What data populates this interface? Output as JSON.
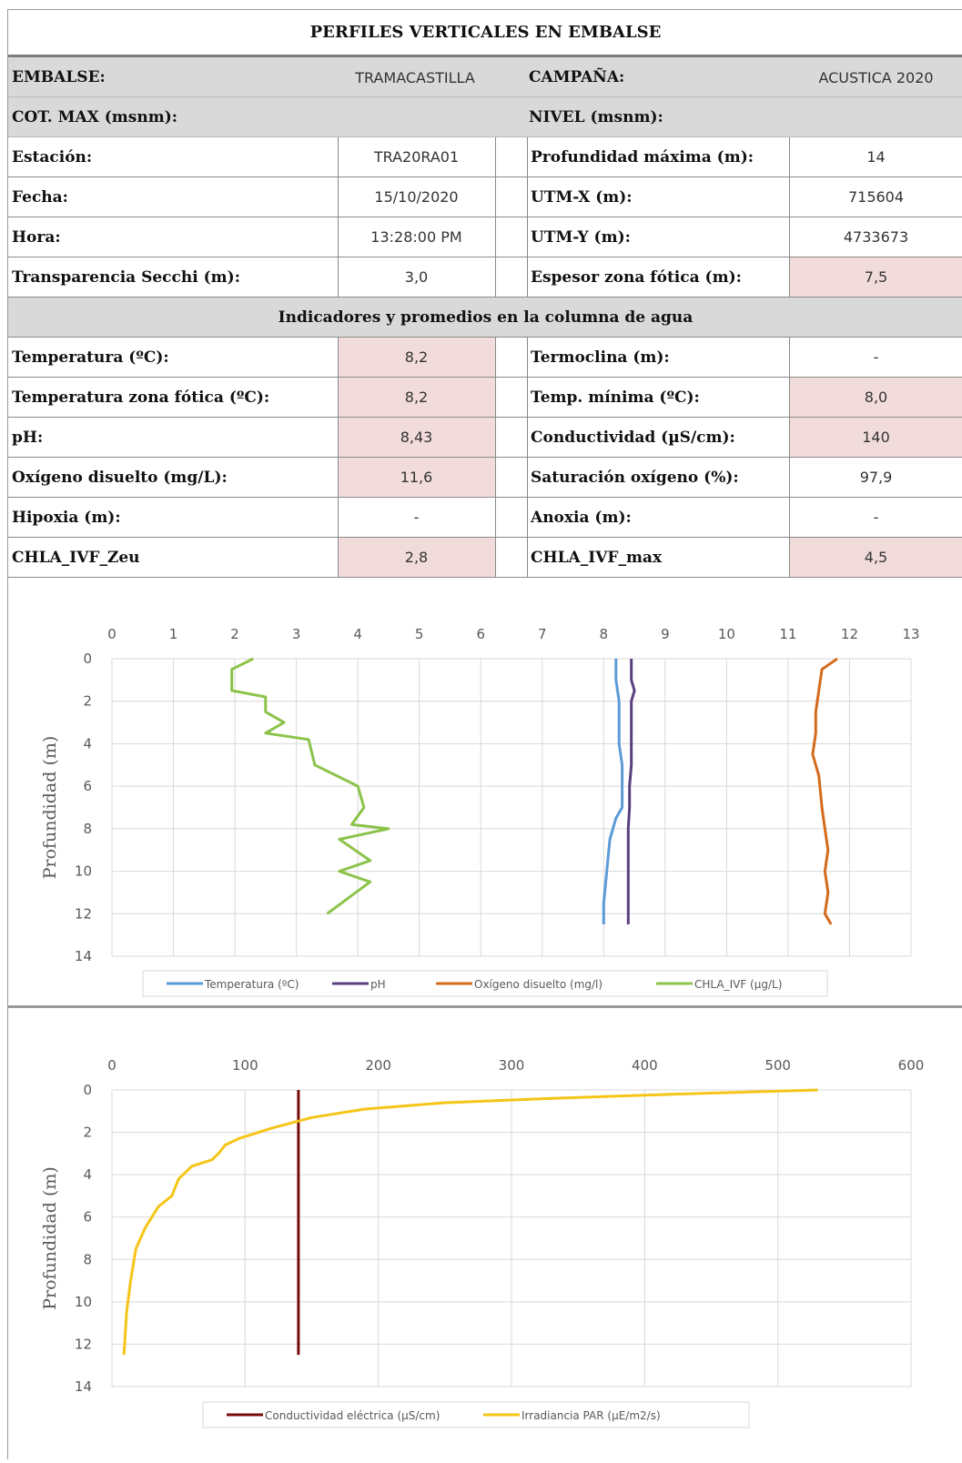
{
  "title": "PERFILES VERTICALES EN EMBALSE",
  "header": {
    "embalse_label": "EMBALSE:",
    "embalse_value": "TRAMACASTILLA",
    "campana_label": "CAMPAÑA:",
    "campana_value": "ACUSTICA 2020",
    "cotmax_label": "COT. MAX (msnm):",
    "nivel_label": "NIVEL (msnm):"
  },
  "station": {
    "rows": [
      {
        "l1": "Estación:",
        "v1": "TRA20RA01",
        "l2": "Profundidad máxima (m):",
        "v2": "14"
      },
      {
        "l1": "Fecha:",
        "v1": "15/10/2020",
        "l2": "UTM-X (m):",
        "v2": "715604"
      },
      {
        "l1": "Hora:",
        "v1": "13:28:00 PM",
        "l2": "UTM-Y (m):",
        "v2": "4733673"
      },
      {
        "l1": "Transparencia Secchi (m):",
        "v1": "3,0",
        "l2": "Espesor zona fótica (m):",
        "v2": "7,5"
      }
    ]
  },
  "indicators": {
    "heading": "Indicadores y promedios en la columna de agua",
    "rows": [
      {
        "l1": "Temperatura (ºC):",
        "v1": "8,2",
        "l2": "Termoclina (m):",
        "v2": "-"
      },
      {
        "l1": "Temperatura zona fótica (ºC):",
        "v1": "8,2",
        "l2": "Temp. mínima (ºC):",
        "v2": "8,0"
      },
      {
        "l1": "pH:",
        "v1": "8,43",
        "l2": "Conductividad (µS/cm):",
        "v2": "140"
      },
      {
        "l1": "Oxígeno disuelto (mg/L):",
        "v1": "11,6",
        "l2": "Saturación oxígeno (%):",
        "v2": "97,9"
      },
      {
        "l1": "Hipoxia (m):",
        "v1": "-",
        "l2": "Anoxia (m):",
        "v2": "-"
      },
      {
        "l1": "CHLA_IVF_Zeu",
        "v1": "2,8",
        "l2": "CHLA_IVF_max",
        "v2": "4,5"
      }
    ]
  },
  "colors": {
    "temperature": "#5b9bd5",
    "ph": "#5a3f7f",
    "oxygen": "#d46b1c",
    "chla": "#8bc34a",
    "conductivity": "#7a0b0b",
    "par": "#f5c518",
    "pink_fill": "#f2dcdb",
    "grey_fill": "#d9d9d9"
  },
  "chart_data": [
    {
      "type": "line",
      "ylabel": "Profundidad (m)",
      "xlim": [
        0,
        13
      ],
      "ylim": [
        0,
        14
      ],
      "xticks": [
        "0",
        "1",
        "2",
        "3",
        "4",
        "5",
        "6",
        "7",
        "8",
        "9",
        "10",
        "11",
        "12",
        "13"
      ],
      "yticks": [
        "0",
        "2",
        "4",
        "6",
        "8",
        "10",
        "12",
        "14"
      ],
      "series": [
        {
          "name": "Temperatura (ºC)",
          "color": "#5b9bd5",
          "x": [
            8.2,
            8.2,
            8.25,
            8.25,
            8.25,
            8.3,
            8.3,
            8.3,
            8.2,
            8.1,
            8.05,
            8.0,
            8.0
          ],
          "y": [
            0,
            1,
            2,
            3,
            4,
            5,
            6,
            7,
            7.5,
            8.5,
            10,
            11.5,
            12.5
          ]
        },
        {
          "name": "pH",
          "color": "#5a3f7f",
          "x": [
            8.45,
            8.45,
            8.5,
            8.45,
            8.45,
            8.45,
            8.45,
            8.42,
            8.42,
            8.4,
            8.4,
            8.4,
            8.4
          ],
          "y": [
            0,
            1,
            1.5,
            2,
            3,
            4,
            5,
            6,
            7,
            8,
            9,
            10,
            12.5
          ]
        },
        {
          "name": "Oxígeno disuelto (mg/l)",
          "color": "#d46b1c",
          "x": [
            11.8,
            11.55,
            11.5,
            11.45,
            11.45,
            11.4,
            11.5,
            11.55,
            11.6,
            11.65,
            11.6,
            11.65,
            11.6,
            11.7
          ],
          "y": [
            0,
            0.5,
            1.5,
            2.5,
            3.5,
            4.5,
            5.5,
            7,
            8,
            9,
            10,
            11,
            12,
            12.5
          ]
        },
        {
          "name": "CHLA_IVF (µg/L)",
          "color": "#8bc34a",
          "x": [
            2.3,
            1.95,
            1.95,
            2.5,
            2.5,
            2.8,
            2.5,
            3.2,
            3.3,
            4.0,
            4.1,
            3.9,
            4.5,
            3.7,
            4.2,
            3.7,
            4.2,
            3.5
          ],
          "y": [
            0,
            0.5,
            1.5,
            1.8,
            2.5,
            3,
            3.5,
            3.8,
            5,
            6,
            7,
            7.8,
            8,
            8.5,
            9.5,
            10,
            10.5,
            12
          ]
        }
      ]
    },
    {
      "type": "line",
      "ylabel": "Profundidad (m)",
      "xlim": [
        0,
        600
      ],
      "ylim": [
        0,
        14
      ],
      "xticks": [
        "0",
        "100",
        "200",
        "300",
        "400",
        "500",
        "600"
      ],
      "yticks": [
        "0",
        "2",
        "4",
        "6",
        "8",
        "10",
        "12",
        "14"
      ],
      "series": [
        {
          "name": "Conductividad eléctrica (µS/cm)",
          "color": "#7a0b0b",
          "x": [
            140,
            140,
            140,
            140,
            140,
            140
          ],
          "y": [
            0,
            2,
            4,
            6,
            8,
            12.5
          ]
        },
        {
          "name": "Irradiancia PAR (µE/m2/s)",
          "color": "#f5c518",
          "x": [
            530,
            420,
            330,
            250,
            190,
            150,
            120,
            95,
            85,
            80,
            75,
            60,
            50,
            45,
            35,
            30,
            25,
            18,
            14,
            11,
            9
          ],
          "y": [
            0,
            0.2,
            0.4,
            0.6,
            0.9,
            1.3,
            1.8,
            2.3,
            2.6,
            3,
            3.3,
            3.6,
            4.2,
            5,
            5.5,
            6,
            6.5,
            7.5,
            9,
            10.5,
            12.5
          ]
        }
      ]
    }
  ]
}
